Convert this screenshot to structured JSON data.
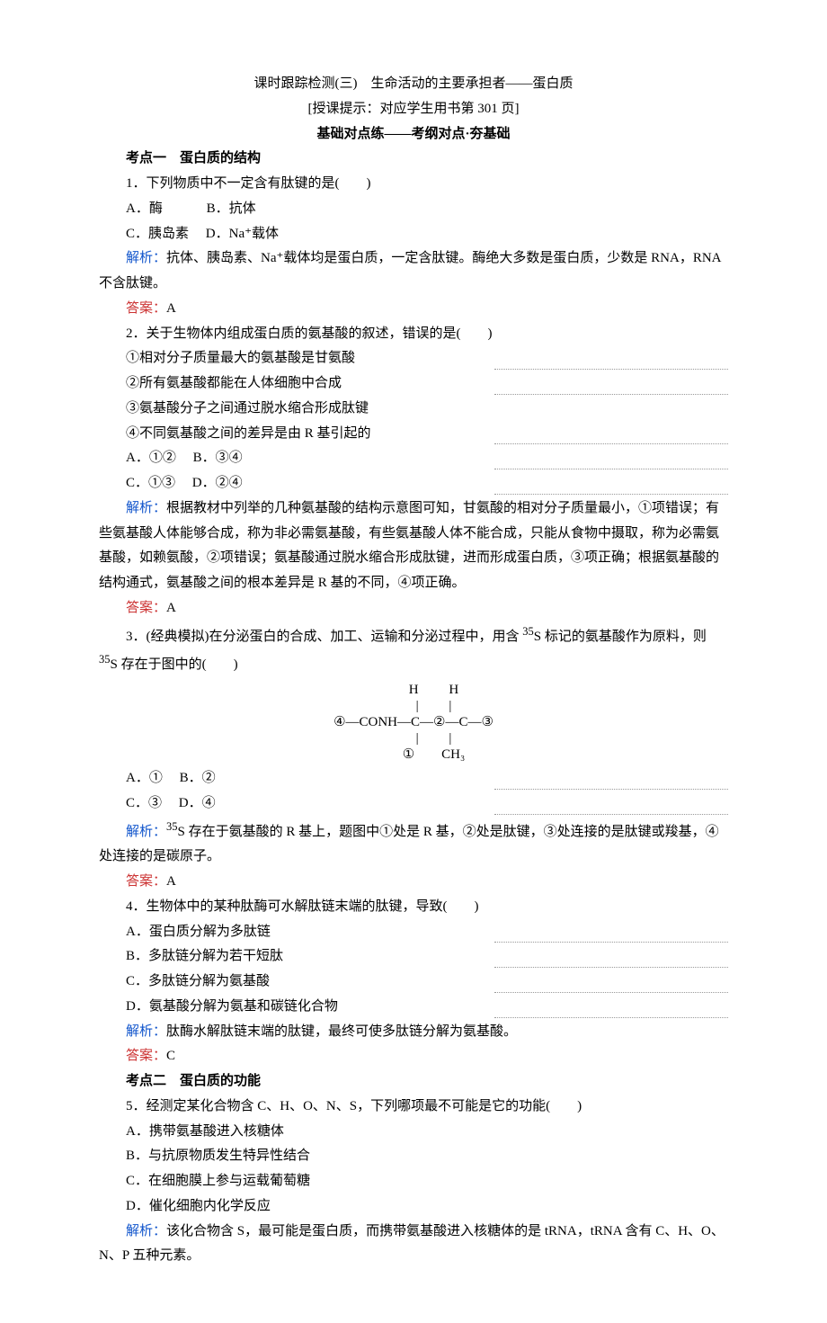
{
  "title": "课时跟踪检测(三)　生命活动的主要承担者——蛋白质",
  "subtitle": "[授课提示：对应学生用书第 301 页]",
  "section_heading": "基础对点练——考纲对点·夯基础",
  "kd1_heading": "考点一　蛋白质的结构",
  "q1_text": "1．下列物质中不一定含有肽键的是(　　)",
  "q1_a": "A．酶",
  "q1_b": "B．抗体",
  "q1_c": "C．胰岛素",
  "q1_d": "D．Na⁺载体",
  "q1_expl_label": "解析：",
  "q1_expl": "抗体、胰岛素、Na⁺载体均是蛋白质，一定含肽键。酶绝大多数是蛋白质，少数是 RNA，RNA 不含肽键。",
  "q1_ans_label": "答案：",
  "q1_ans": "A",
  "q2_text": "2．关于生物体内组成蛋白质的氨基酸的叙述，错误的是(　　)",
  "q2_s1": "①相对分子质量最大的氨基酸是甘氨酸",
  "q2_s2": "②所有氨基酸都能在人体细胞中合成",
  "q2_s3": "③氨基酸分子之间通过脱水缩合形成肽键",
  "q2_s4": "④不同氨基酸之间的差异是由 R 基引起的",
  "q2_a": "A．①②",
  "q2_b": "B．③④",
  "q2_c": "C．①③",
  "q2_d": "D．②④",
  "q2_expl_label": "解析：",
  "q2_expl": "根据教材中列举的几种氨基酸的结构示意图可知，甘氨酸的相对分子质量最小，①项错误；有些氨基酸人体能够合成，称为非必需氨基酸，有些氨基酸人体不能合成，只能从食物中摄取，称为必需氨基酸，如赖氨酸，②项错误；氨基酸通过脱水缩合形成肽键，进而形成蛋白质，③项正确；根据氨基酸的结构通式，氨基酸之间的根本差异是 R 基的不同，④项正确。",
  "q2_ans_label": "答案：",
  "q2_ans": "A",
  "q3_text_a": "3．(经典模拟)在分泌蛋白的合成、加工、运输和分泌过程中，用含 ",
  "q3_text_sup1": "35",
  "q3_text_b": "S 标记的氨基酸作为原料，则 ",
  "q3_text_sup2": "35",
  "q3_text_c": "S 存在于图中的(　　)",
  "q3_diagram_r1": "            H         H",
  "q3_diagram_r2": "            |         |",
  "q3_diagram_r3": "④—CONH—C—②—C—③",
  "q3_diagram_r4": "            |         |",
  "q3_diagram_r5": "            ①        CH₃",
  "q3_a": "A．①",
  "q3_b": "B．②",
  "q3_c": "C．③",
  "q3_d": "D．④",
  "q3_expl_label": "解析：",
  "q3_expl_sup": "35",
  "q3_expl": "S 存在于氨基酸的 R 基上，题图中①处是 R 基，②处是肽键，③处连接的是肽键或羧基，④处连接的是碳原子。",
  "q3_ans_label": "答案：",
  "q3_ans": "A",
  "q4_text": "4．生物体中的某种肽酶可水解肽链末端的肽键，导致(　　)",
  "q4_a": "A．蛋白质分解为多肽链",
  "q4_b": "B．多肽链分解为若干短肽",
  "q4_c": "C．多肽链分解为氨基酸",
  "q4_d": "D．氨基酸分解为氨基和碳链化合物",
  "q4_expl_label": "解析：",
  "q4_expl": "肽酶水解肽链末端的肽键，最终可使多肽链分解为氨基酸。",
  "q4_ans_label": "答案：",
  "q4_ans": "C",
  "kd2_heading": "考点二　蛋白质的功能",
  "q5_text": "5．经测定某化合物含 C、H、O、N、S，下列哪项最不可能是它的功能(　　)",
  "q5_a": "A．携带氨基酸进入核糖体",
  "q5_b": "B．与抗原物质发生特异性结合",
  "q5_c": "C．在细胞膜上参与运载葡萄糖",
  "q5_d": "D．催化细胞内化学反应",
  "q5_expl_label": "解析：",
  "q5_expl": "该化合物含 S，最可能是蛋白质，而携带氨基酸进入核糖体的是 tRNA，tRNA 含有 C、H、O、N、P 五种元素。"
}
